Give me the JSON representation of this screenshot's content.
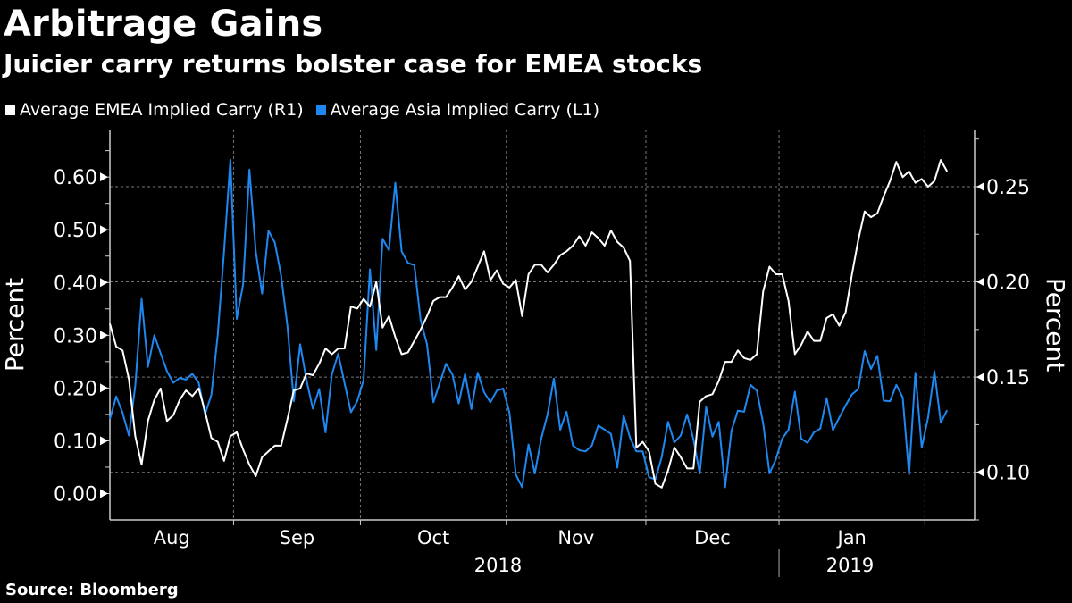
{
  "header": {
    "title": "Arbitrage Gains",
    "subtitle": "Juicier carry returns bolster case for EMEA stocks"
  },
  "source": "Source: Bloomberg",
  "colors": {
    "background": "#000000",
    "emea": "#ffffff",
    "asia": "#1e88f0",
    "grid": "#777777"
  },
  "chart_data": {
    "type": "line",
    "title": "Arbitrage Gains",
    "subtitle": "Juicier carry returns bolster case for EMEA stocks",
    "legend_position": "top-left",
    "grid": true,
    "x_month_labels": [
      "Aug",
      "Sep",
      "Oct",
      "Nov",
      "Dec",
      "Jan"
    ],
    "x_year_labels": [
      "2018",
      "2019"
    ],
    "left_axis": {
      "label": "Percent",
      "ticks": [
        "0.00",
        "0.10",
        "0.20",
        "0.30",
        "0.40",
        "0.50",
        "0.60"
      ],
      "ylim": [
        -0.05,
        0.69
      ]
    },
    "right_axis": {
      "label": "Percent",
      "ticks": [
        "0.10",
        "0.15",
        "0.20",
        "0.25"
      ],
      "ylim": [
        0.075,
        0.28
      ]
    },
    "dates": [
      "2018-08-06",
      "2018-08-07",
      "2018-08-08",
      "2018-08-09",
      "2018-08-10",
      "2018-08-13",
      "2018-08-14",
      "2018-08-15",
      "2018-08-16",
      "2018-08-17",
      "2018-08-20",
      "2018-08-21",
      "2018-08-22",
      "2018-08-23",
      "2018-08-24",
      "2018-08-27",
      "2018-08-28",
      "2018-08-29",
      "2018-08-30",
      "2018-08-31",
      "2018-09-03",
      "2018-09-04",
      "2018-09-05",
      "2018-09-06",
      "2018-09-07",
      "2018-09-10",
      "2018-09-11",
      "2018-09-12",
      "2018-09-13",
      "2018-09-14",
      "2018-09-17",
      "2018-09-18",
      "2018-09-19",
      "2018-09-20",
      "2018-09-21",
      "2018-09-24",
      "2018-09-25",
      "2018-09-26",
      "2018-09-27",
      "2018-09-28",
      "2018-10-01",
      "2018-10-02",
      "2018-10-03",
      "2018-10-04",
      "2018-10-05",
      "2018-10-08",
      "2018-10-09",
      "2018-10-10",
      "2018-10-11",
      "2018-10-12",
      "2018-10-15",
      "2018-10-16",
      "2018-10-17",
      "2018-10-18",
      "2018-10-19",
      "2018-10-22",
      "2018-10-23",
      "2018-10-24",
      "2018-10-25",
      "2018-10-26",
      "2018-10-29",
      "2018-10-30",
      "2018-10-31",
      "2018-11-01",
      "2018-11-02",
      "2018-11-05",
      "2018-11-06",
      "2018-11-07",
      "2018-11-08",
      "2018-11-09",
      "2018-11-12",
      "2018-11-13",
      "2018-11-14",
      "2018-11-15",
      "2018-11-16",
      "2018-11-19",
      "2018-11-20",
      "2018-11-21",
      "2018-11-22",
      "2018-11-23",
      "2018-11-26",
      "2018-11-27",
      "2018-11-28",
      "2018-11-29",
      "2018-11-30",
      "2018-12-03",
      "2018-12-04",
      "2018-12-05",
      "2018-12-06",
      "2018-12-07",
      "2018-12-10",
      "2018-12-11",
      "2018-12-12",
      "2018-12-13",
      "2018-12-14",
      "2018-12-17",
      "2018-12-18",
      "2018-12-19",
      "2018-12-20",
      "2018-12-21",
      "2018-12-24",
      "2018-12-25",
      "2018-12-26",
      "2018-12-27",
      "2018-12-28",
      "2018-12-31",
      "2019-01-01",
      "2019-01-02",
      "2019-01-03",
      "2019-01-04",
      "2019-01-07",
      "2019-01-08",
      "2019-01-09",
      "2019-01-10",
      "2019-01-11",
      "2019-01-14",
      "2019-01-15",
      "2019-01-16",
      "2019-01-17",
      "2019-01-18",
      "2019-01-21",
      "2019-01-22",
      "2019-01-23",
      "2019-01-24",
      "2019-01-25",
      "2019-01-28",
      "2019-01-29",
      "2019-01-30",
      "2019-01-31",
      "2019-02-01",
      "2019-02-04",
      "2019-02-05",
      "2019-02-06"
    ],
    "series": [
      {
        "name": "Average EMEA Implied Carry (R1)",
        "axis": "right",
        "color": "#ffffff",
        "values": [
          0.178,
          0.166,
          0.164,
          0.149,
          0.119,
          0.104,
          0.127,
          0.138,
          0.144,
          0.127,
          0.13,
          0.138,
          0.143,
          0.14,
          0.144,
          0.132,
          0.118,
          0.116,
          0.106,
          0.119,
          0.121,
          0.112,
          0.104,
          0.098,
          0.108,
          0.111,
          0.114,
          0.114,
          0.128,
          0.143,
          0.144,
          0.152,
          0.151,
          0.157,
          0.165,
          0.162,
          0.165,
          0.165,
          0.187,
          0.186,
          0.191,
          0.187,
          0.2,
          0.176,
          0.182,
          0.171,
          0.162,
          0.163,
          0.169,
          0.175,
          0.182,
          0.19,
          0.192,
          0.192,
          0.197,
          0.203,
          0.196,
          0.2,
          0.208,
          0.216,
          0.201,
          0.206,
          0.199,
          0.197,
          0.201,
          0.182,
          0.204,
          0.209,
          0.209,
          0.205,
          0.209,
          0.214,
          0.216,
          0.219,
          0.224,
          0.219,
          0.226,
          0.223,
          0.219,
          0.227,
          0.221,
          0.218,
          0.211,
          0.113,
          0.116,
          0.111,
          0.094,
          0.092,
          0.101,
          0.113,
          0.108,
          0.102,
          0.102,
          0.137,
          0.14,
          0.141,
          0.148,
          0.158,
          0.158,
          0.164,
          0.16,
          0.159,
          0.162,
          0.195,
          0.208,
          0.204,
          0.204,
          0.19,
          0.162,
          0.167,
          0.174,
          0.169,
          0.169,
          0.181,
          0.183,
          0.177,
          0.184,
          0.204,
          0.222,
          0.237,
          0.234,
          0.236,
          0.245,
          0.253,
          0.263,
          0.255,
          0.258,
          0.252,
          0.254,
          0.25,
          0.253,
          0.264,
          0.258
        ]
      },
      {
        "name": "Average Asia Implied Carry (L1)",
        "axis": "left",
        "color": "#1e88f0",
        "values": [
          0.141,
          0.184,
          0.153,
          0.11,
          0.204,
          0.369,
          0.24,
          0.3,
          0.266,
          0.232,
          0.21,
          0.219,
          0.216,
          0.227,
          0.21,
          0.15,
          0.187,
          0.3,
          0.459,
          0.633,
          0.331,
          0.396,
          0.614,
          0.459,
          0.379,
          0.498,
          0.476,
          0.413,
          0.317,
          0.175,
          0.283,
          0.215,
          0.161,
          0.198,
          0.116,
          0.226,
          0.265,
          0.209,
          0.154,
          0.175,
          0.215,
          0.425,
          0.272,
          0.483,
          0.461,
          0.589,
          0.459,
          0.437,
          0.433,
          0.328,
          0.283,
          0.173,
          0.209,
          0.246,
          0.226,
          0.171,
          0.227,
          0.16,
          0.229,
          0.192,
          0.173,
          0.195,
          0.199,
          0.153,
          0.036,
          0.012,
          0.093,
          0.038,
          0.104,
          0.15,
          0.218,
          0.121,
          0.155,
          0.091,
          0.082,
          0.08,
          0.091,
          0.129,
          0.121,
          0.113,
          0.049,
          0.148,
          0.106,
          0.08,
          0.08,
          0.031,
          0.027,
          0.069,
          0.136,
          0.097,
          0.11,
          0.15,
          0.103,
          0.038,
          0.164,
          0.108,
          0.136,
          0.012,
          0.119,
          0.157,
          0.155,
          0.206,
          0.195,
          0.133,
          0.038,
          0.065,
          0.104,
          0.121,
          0.193,
          0.104,
          0.096,
          0.116,
          0.123,
          0.181,
          0.12,
          0.144,
          0.167,
          0.188,
          0.198,
          0.27,
          0.236,
          0.261,
          0.176,
          0.175,
          0.206,
          0.182,
          0.036,
          0.229,
          0.087,
          0.144,
          0.232,
          0.134,
          0.158
        ]
      }
    ]
  }
}
